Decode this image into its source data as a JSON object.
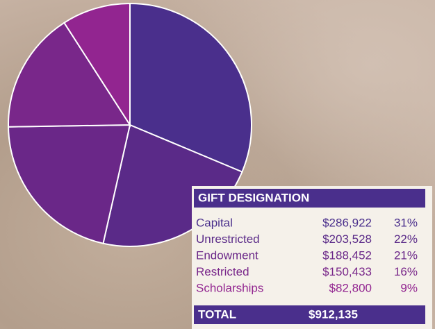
{
  "chart_data": {
    "type": "pie",
    "title": "GIFT DESIGNATION",
    "categories": [
      "Capital",
      "Unrestricted",
      "Endowment",
      "Restricted",
      "Scholarships"
    ],
    "values": [
      31,
      22,
      21,
      16,
      9
    ],
    "value_labels": [
      "31%",
      "22%",
      "21%",
      "16%",
      "9%"
    ],
    "amounts": [
      "$286,922",
      "$203,528",
      "$188,452",
      "$150,433",
      "$82,800"
    ],
    "colors": [
      "#4a2f8c",
      "#5a2a88",
      "#6a2788",
      "#79278a",
      "#922590"
    ],
    "total_label": "TOTAL",
    "total": "$912,135"
  }
}
